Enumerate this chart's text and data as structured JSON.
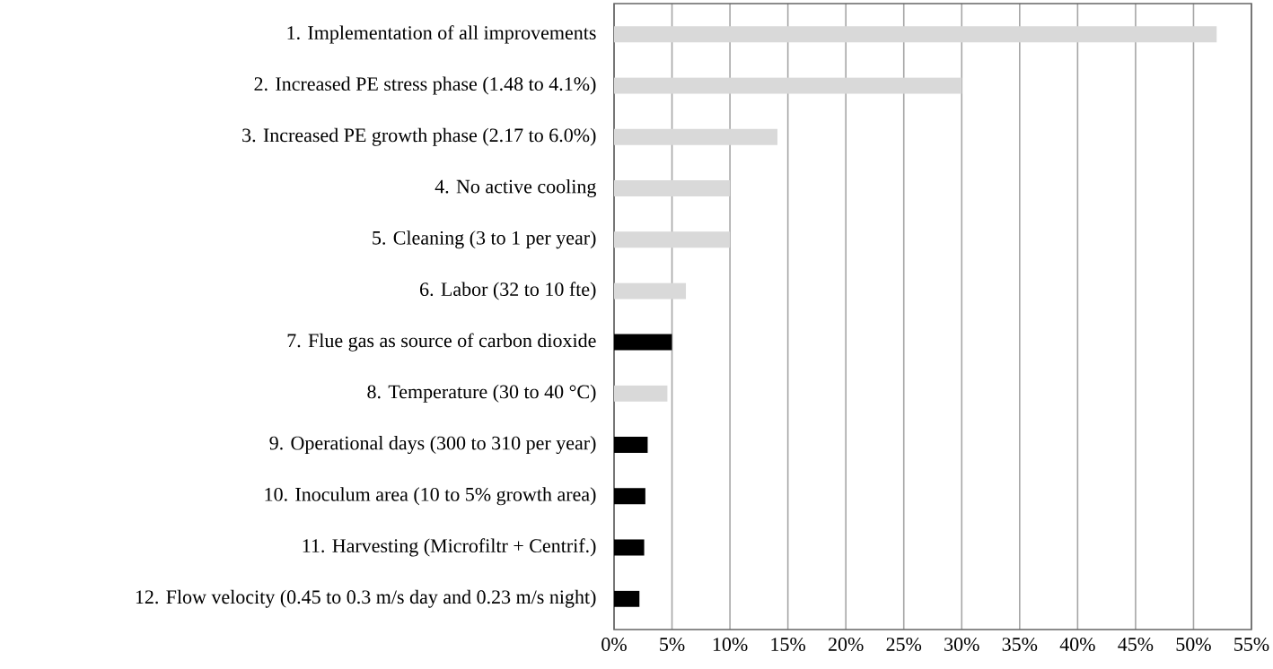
{
  "chart_data": {
    "type": "bar",
    "orientation": "horizontal",
    "categories": [
      "1. Implementation of all improvements",
      "2. Increased PE stress phase (1.48 to 4.1%)",
      "3. Increased PE growth phase (2.17 to 6.0%)",
      "4. No active cooling",
      "5. Cleaning (3 to 1 per year)",
      "6. Labor (32 to 10 fte)",
      "7. Flue gas as source of carbon dioxide",
      "8.  Temperature (30 to 40 °C)",
      "9. Operational days (300 to 310 per year)",
      "10. Inoculum area (10 to 5% growth area)",
      "11. Harvesting (Microfiltr + Centrif.)",
      "12. Flow velocity (0.45 to 0.3 m/s day and 0.23 m/s night)"
    ],
    "values": [
      52,
      30,
      14.1,
      10,
      10,
      6.2,
      5,
      4.6,
      2.9,
      2.7,
      2.6,
      2.2
    ],
    "colors": [
      "#d9d9d9",
      "#d9d9d9",
      "#d9d9d9",
      "#d9d9d9",
      "#d9d9d9",
      "#d9d9d9",
      "#000000",
      "#d9d9d9",
      "#000000",
      "#000000",
      "#000000",
      "#000000"
    ],
    "xlim": [
      0,
      55
    ],
    "xticks": [
      {
        "value": 0,
        "label": "0%"
      },
      {
        "value": 5,
        "label": "5%"
      },
      {
        "value": 10,
        "label": "10%"
      },
      {
        "value": 15,
        "label": "15%"
      },
      {
        "value": 20,
        "label": "20%"
      },
      {
        "value": 25,
        "label": "25%"
      },
      {
        "value": 30,
        "label": "30%"
      },
      {
        "value": 35,
        "label": "35%"
      },
      {
        "value": 40,
        "label": "40%"
      },
      {
        "value": 45,
        "label": "45%"
      },
      {
        "value": 50,
        "label": "50%"
      },
      {
        "value": 55,
        "label": "55%"
      }
    ],
    "grid": "x"
  }
}
